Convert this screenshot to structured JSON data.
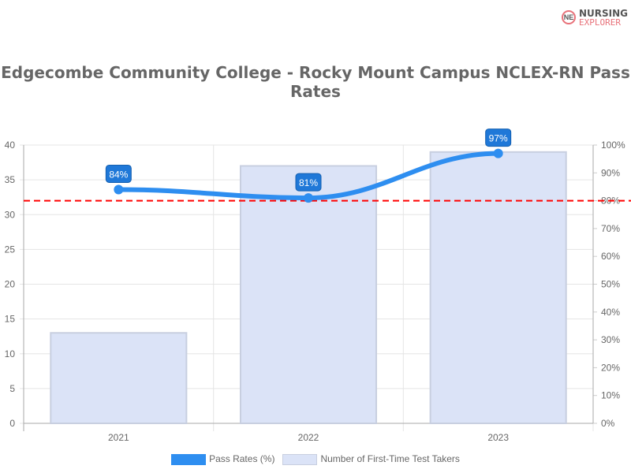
{
  "logo": {
    "line1": "NURSING",
    "line2": "EXPLORER",
    "mark": "NE"
  },
  "chart_data": {
    "type": "bar",
    "title": "Edgecombe Community College - Rocky Mount Campus NCLEX-RN Pass Rates",
    "categories": [
      "2021",
      "2022",
      "2023"
    ],
    "series": [
      {
        "name": "Pass Rates (%)",
        "type": "line",
        "axis": "right",
        "values": [
          84,
          81,
          97
        ],
        "labels": [
          "84%",
          "81%",
          "97%"
        ],
        "color": "#2e8ef0"
      },
      {
        "name": "Number of First-Time Test Takers",
        "type": "bar",
        "axis": "left",
        "values": [
          13,
          37,
          39
        ],
        "color": "#dbe3f7"
      }
    ],
    "reference_line": {
      "value": 80,
      "axis": "right",
      "color": "#ff0000",
      "style": "dashed"
    },
    "ylim_left": [
      0,
      40
    ],
    "yticks_left": [
      "0",
      "5",
      "10",
      "15",
      "20",
      "25",
      "30",
      "35",
      "40"
    ],
    "ylim_right": [
      0,
      100
    ],
    "yticks_right": [
      "0%",
      "10%",
      "20%",
      "30%",
      "40%",
      "50%",
      "60%",
      "70%",
      "80%",
      "90%",
      "100%"
    ],
    "grid": true,
    "legend": "bottom"
  }
}
